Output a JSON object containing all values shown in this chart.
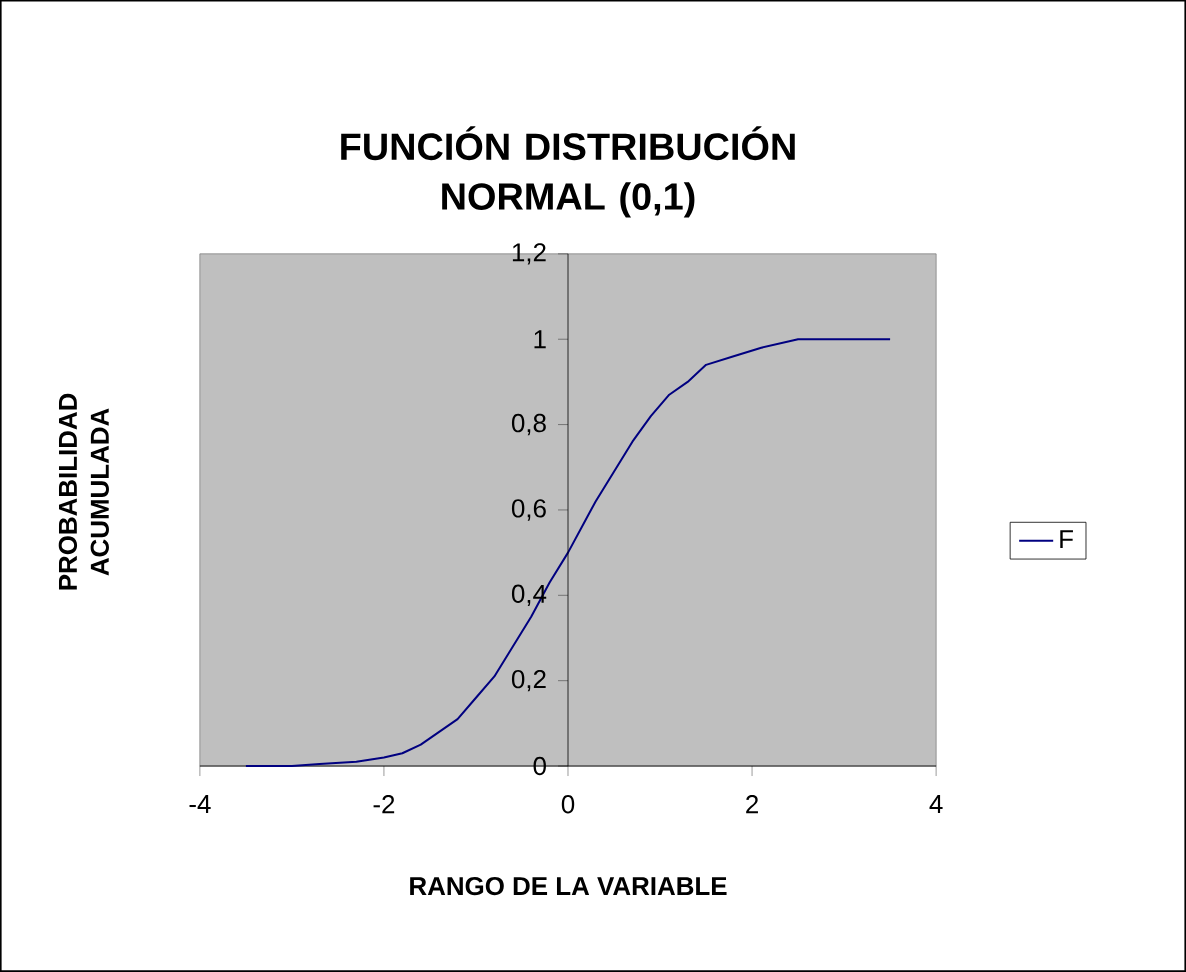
{
  "chart_data": {
    "type": "line",
    "title": "FUNCIÓN DISTRIBUCIÓN NORMAL (0,1)",
    "xlabel": "RANGO DE LA VARIABLE",
    "ylabel": "PROBABILIDAD ACUMULADA",
    "x": [
      -3.5,
      -3,
      -2.7,
      -2.3,
      -2,
      -1.8,
      -1.6,
      -1.4,
      -1.2,
      -1,
      -0.8,
      -0.6,
      -0.4,
      -0.2,
      0,
      0.2,
      0.3,
      0.5,
      0.7,
      0.9,
      1.1,
      1.3,
      1.5,
      1.8,
      2.1,
      2.5,
      3,
      3.5
    ],
    "series": [
      {
        "name": "F",
        "color": "#000080",
        "values": [
          0,
          0,
          0.005,
          0.01,
          0.02,
          0.03,
          0.05,
          0.08,
          0.11,
          0.16,
          0.21,
          0.28,
          0.35,
          0.43,
          0.5,
          0.58,
          0.62,
          0.69,
          0.76,
          0.82,
          0.87,
          0.9,
          0.94,
          0.96,
          0.98,
          1,
          1,
          1
        ]
      }
    ],
    "xlim": [
      -4,
      4
    ],
    "ylim": [
      0,
      1.2
    ],
    "xticks": [
      -4,
      -2,
      0,
      2,
      4
    ],
    "yticks": [
      0,
      {
        "value": 0.2,
        "label": "0,2"
      },
      {
        "value": 0.4,
        "label": "0,4"
      },
      {
        "value": 0.6,
        "label": "0,6"
      },
      {
        "value": 0.8,
        "label": "0,8"
      },
      1,
      {
        "value": 1.2,
        "label": "1,2"
      }
    ],
    "legend": "right",
    "grid": false,
    "marker": "none",
    "line_style": "solid"
  }
}
